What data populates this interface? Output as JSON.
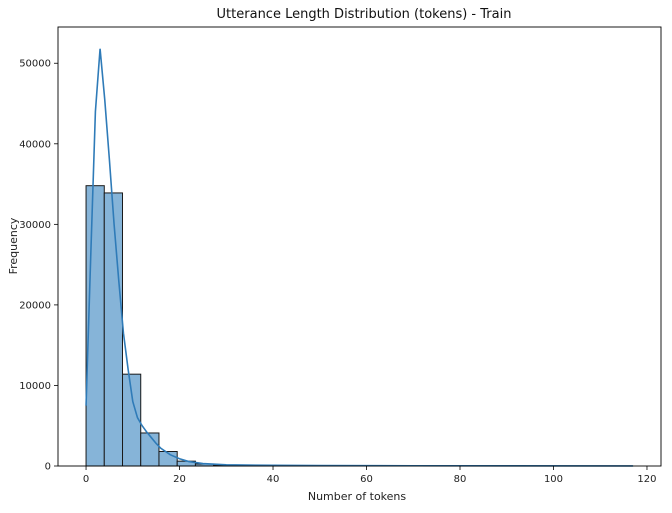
{
  "chart_data": {
    "type": "bar",
    "title": "Utterance Length Distribution (tokens) - Train",
    "xlabel": "Number of tokens",
    "ylabel": "Frequency",
    "xlim": [
      -6,
      123
    ],
    "ylim": [
      0,
      54500
    ],
    "xticks": [
      0,
      20,
      40,
      60,
      80,
      100,
      120
    ],
    "yticks": [
      0,
      10000,
      20000,
      30000,
      40000,
      50000
    ],
    "grid": false,
    "bin_edges": [
      0,
      3.9,
      7.8,
      11.7,
      15.6,
      19.5,
      23.4,
      27.3,
      31.2,
      35.1,
      39.0,
      42.9,
      46.8,
      50.7,
      54.6,
      58.5,
      62.4,
      66.3,
      70.2,
      74.1,
      78.0,
      81.9,
      85.8,
      89.7,
      93.6,
      97.5,
      101.4,
      105.3,
      109.2,
      113.1,
      117.0
    ],
    "values": [
      34800,
      33900,
      11400,
      4100,
      1800,
      600,
      250,
      120,
      70,
      40,
      25,
      15,
      10,
      8,
      6,
      5,
      4,
      3,
      3,
      2,
      2,
      2,
      1,
      1,
      1,
      1,
      1,
      1,
      1,
      1
    ],
    "kde": {
      "x": [
        0,
        1,
        2,
        3,
        4,
        5,
        6,
        7,
        8,
        9,
        10,
        11,
        12,
        13,
        14,
        15,
        16,
        18,
        20,
        22,
        25,
        30,
        40,
        50,
        70,
        90,
        117
      ],
      "y": [
        7500,
        26000,
        44000,
        51800,
        45500,
        38000,
        30000,
        23000,
        16500,
        12000,
        8000,
        6000,
        5000,
        4200,
        3500,
        2800,
        2200,
        1400,
        900,
        550,
        300,
        150,
        80,
        50,
        30,
        20,
        10
      ]
    },
    "colors": {
      "bar_fill": "#86b4d8",
      "bar_edge": "#1a1a1a",
      "kde_line": "#2f7bb8"
    }
  }
}
